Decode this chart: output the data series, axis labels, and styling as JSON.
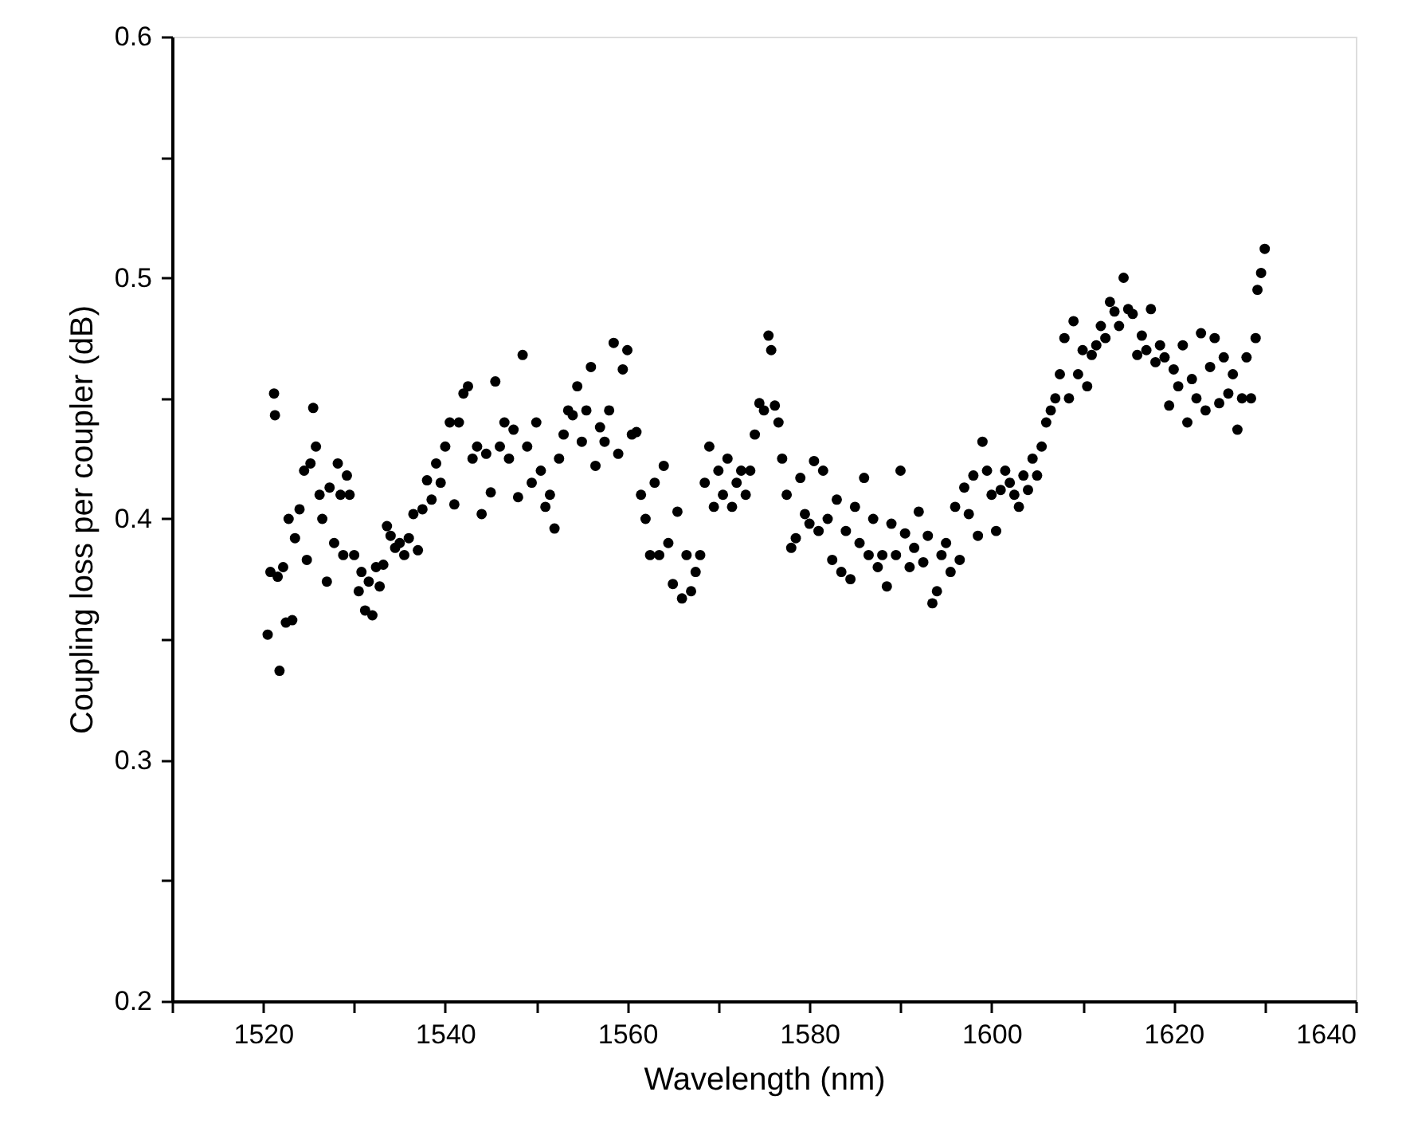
{
  "chart_data": {
    "type": "scatter",
    "xlabel": "Wavelength (nm)",
    "ylabel": "Coupling loss per coupler (dB)",
    "xlim": [
      1510,
      1640
    ],
    "ylim": [
      0.2,
      0.6
    ],
    "xticks": [
      {
        "value": 1510,
        "label": null
      },
      1520,
      {
        "value": 1530,
        "label": null
      },
      1540,
      {
        "value": 1550,
        "label": null
      },
      1560,
      {
        "value": 1570,
        "label": null
      },
      1580,
      {
        "value": 1590,
        "label": null
      },
      1600,
      {
        "value": 1610,
        "label": null
      },
      1620,
      {
        "value": 1630,
        "label": null
      },
      1640
    ],
    "yticks": [
      0.2,
      {
        "value": 0.25,
        "label": null
      },
      0.3,
      {
        "value": 0.35,
        "label": null
      },
      0.4,
      {
        "value": 0.45,
        "label": null
      },
      0.5,
      {
        "value": 0.55,
        "label": null
      },
      0.6
    ],
    "grid": false,
    "marker": "circle",
    "series": [
      {
        "color": "#000000",
        "x": [
          1520.5,
          1520.8,
          1521.2,
          1521.3,
          1521.6,
          1521.8,
          1522.2,
          1522.5,
          1522.8,
          1523.2,
          1523.5,
          1524,
          1524.5,
          1524.8,
          1525.2,
          1525.5,
          1525.8,
          1526.2,
          1526.5,
          1527,
          1527.3,
          1527.8,
          1528.2,
          1528.5,
          1528.8,
          1529.2,
          1529.5,
          1530,
          1530.5,
          1530.8,
          1531.2,
          1531.6,
          1532,
          1532.4,
          1532.8,
          1533.2,
          1533.6,
          1534,
          1534.5,
          1535,
          1535.5,
          1536,
          1536.5,
          1537,
          1537.5,
          1538,
          1538.5,
          1539,
          1539.5,
          1540,
          1540.5,
          1541,
          1541.5,
          1542,
          1542.5,
          1543,
          1543.5,
          1544,
          1544.5,
          1545,
          1545.5,
          1546,
          1546.5,
          1547,
          1547.5,
          1548,
          1548.5,
          1549,
          1549.5,
          1550,
          1550.5,
          1551,
          1551.5,
          1552,
          1552.5,
          1553,
          1553.5,
          1554,
          1554.5,
          1555,
          1555.5,
          1556,
          1556.5,
          1557,
          1557.5,
          1558,
          1558.5,
          1559,
          1559.5,
          1560,
          1560.5,
          1561,
          1561.5,
          1562,
          1562.5,
          1563,
          1563.5,
          1564,
          1564.5,
          1565,
          1565.5,
          1566,
          1566.5,
          1567,
          1567.5,
          1568,
          1568.5,
          1569,
          1569.5,
          1570,
          1570.5,
          1571,
          1571.5,
          1572,
          1572.5,
          1573,
          1573.5,
          1574,
          1574.5,
          1575,
          1575.5,
          1575.8,
          1576.2,
          1576.6,
          1577,
          1577.5,
          1578,
          1578.5,
          1579,
          1579.5,
          1580,
          1580.5,
          1581,
          1581.5,
          1582,
          1582.5,
          1583,
          1583.5,
          1584,
          1584.5,
          1585,
          1585.5,
          1586,
          1586.5,
          1587,
          1587.5,
          1588,
          1588.5,
          1589,
          1589.5,
          1590,
          1590.5,
          1591,
          1591.5,
          1592,
          1592.5,
          1593,
          1593.5,
          1594,
          1594.5,
          1595,
          1595.5,
          1596,
          1596.5,
          1597,
          1597.5,
          1598,
          1598.5,
          1599,
          1599.5,
          1600,
          1600.5,
          1601,
          1601.5,
          1602,
          1602.5,
          1603,
          1603.5,
          1604,
          1604.5,
          1605,
          1605.5,
          1606,
          1606.5,
          1607,
          1607.5,
          1608,
          1608.5,
          1609,
          1609.5,
          1610,
          1610.5,
          1611,
          1611.5,
          1612,
          1612.5,
          1613,
          1613.5,
          1614,
          1614.5,
          1615,
          1615.5,
          1616,
          1616.5,
          1617,
          1617.5,
          1618,
          1618.5,
          1619,
          1619.5,
          1620,
          1620.5,
          1621,
          1621.5,
          1622,
          1622.5,
          1623,
          1623.5,
          1624,
          1624.5,
          1625,
          1625.5,
          1626,
          1626.5,
          1627,
          1627.5,
          1628,
          1628.5,
          1629,
          1629.2,
          1629.6,
          1630
        ],
        "values": [
          0.352,
          0.378,
          0.452,
          0.443,
          0.376,
          0.337,
          0.38,
          0.357,
          0.4,
          0.358,
          0.392,
          0.404,
          0.42,
          0.383,
          0.423,
          0.446,
          0.43,
          0.41,
          0.4,
          0.374,
          0.413,
          0.39,
          0.423,
          0.41,
          0.385,
          0.418,
          0.41,
          0.385,
          0.37,
          0.378,
          0.362,
          0.374,
          0.36,
          0.38,
          0.372,
          0.381,
          0.397,
          0.393,
          0.388,
          0.39,
          0.385,
          0.392,
          0.402,
          0.387,
          0.404,
          0.416,
          0.408,
          0.423,
          0.415,
          0.43,
          0.44,
          0.406,
          0.44,
          0.452,
          0.455,
          0.425,
          0.43,
          0.402,
          0.427,
          0.411,
          0.457,
          0.43,
          0.44,
          0.425,
          0.437,
          0.409,
          0.468,
          0.43,
          0.415,
          0.44,
          0.42,
          0.405,
          0.41,
          0.396,
          0.425,
          0.435,
          0.445,
          0.443,
          0.455,
          0.432,
          0.445,
          0.463,
          0.422,
          0.438,
          0.432,
          0.445,
          0.473,
          0.427,
          0.462,
          0.47,
          0.435,
          0.436,
          0.41,
          0.4,
          0.385,
          0.415,
          0.385,
          0.422,
          0.39,
          0.373,
          0.403,
          0.367,
          0.385,
          0.37,
          0.378,
          0.385,
          0.415,
          0.43,
          0.405,
          0.42,
          0.41,
          0.425,
          0.405,
          0.415,
          0.42,
          0.41,
          0.42,
          0.435,
          0.448,
          0.445,
          0.476,
          0.47,
          0.447,
          0.44,
          0.425,
          0.41,
          0.388,
          0.392,
          0.417,
          0.402,
          0.398,
          0.424,
          0.395,
          0.42,
          0.4,
          0.383,
          0.408,
          0.378,
          0.395,
          0.375,
          0.405,
          0.39,
          0.417,
          0.385,
          0.4,
          0.38,
          0.385,
          0.372,
          0.398,
          0.385,
          0.42,
          0.394,
          0.38,
          0.388,
          0.403,
          0.382,
          0.393,
          0.365,
          0.37,
          0.385,
          0.39,
          0.378,
          0.405,
          0.383,
          0.413,
          0.402,
          0.418,
          0.393,
          0.432,
          0.42,
          0.41,
          0.395,
          0.412,
          0.42,
          0.415,
          0.41,
          0.405,
          0.418,
          0.412,
          0.425,
          0.418,
          0.43,
          0.44,
          0.445,
          0.45,
          0.46,
          0.475,
          0.45,
          0.482,
          0.46,
          0.47,
          0.455,
          0.468,
          0.472,
          0.48,
          0.475,
          0.49,
          0.486,
          0.48,
          0.5,
          0.487,
          0.485,
          0.468,
          0.476,
          0.47,
          0.487,
          0.465,
          0.472,
          0.467,
          0.447,
          0.462,
          0.455,
          0.472,
          0.44,
          0.458,
          0.45,
          0.477,
          0.445,
          0.463,
          0.475,
          0.448,
          0.467,
          0.452,
          0.46,
          0.437,
          0.45,
          0.467,
          0.45,
          0.475,
          0.495,
          0.502,
          0.512
        ]
      }
    ]
  }
}
